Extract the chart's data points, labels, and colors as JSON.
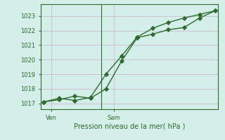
{
  "line1_x": [
    0,
    1,
    2,
    3,
    4,
    5,
    6,
    7,
    8,
    9,
    10,
    11
  ],
  "line1_y": [
    1017.1,
    1017.35,
    1017.2,
    1017.4,
    1019.0,
    1020.25,
    1021.55,
    1022.15,
    1022.55,
    1022.85,
    1023.1,
    1023.35
  ],
  "line2_x": [
    0,
    1,
    2,
    3,
    4,
    5,
    6,
    7,
    8,
    9,
    10,
    11
  ],
  "line2_y": [
    1017.1,
    1017.25,
    1017.5,
    1017.35,
    1018.0,
    1019.9,
    1021.5,
    1021.75,
    1022.05,
    1022.2,
    1022.85,
    1023.35
  ],
  "line_color": "#2d6a2d",
  "bg_color": "#d4eeea",
  "grid_color": "#c9afc9",
  "ylabel": "Pression niveau de la mer( hPa )",
  "ylim": [
    1016.6,
    1023.8
  ],
  "xlim": [
    -0.2,
    11.2
  ],
  "yticks": [
    1017,
    1018,
    1019,
    1020,
    1021,
    1022,
    1023
  ],
  "ven_tick_x": 0.5,
  "sam_tick_x": 4.5,
  "ven_line_x": 3.7,
  "tick_fontsize": 6,
  "xlabel_fontsize": 7,
  "axis_color": "#2d6a2d"
}
